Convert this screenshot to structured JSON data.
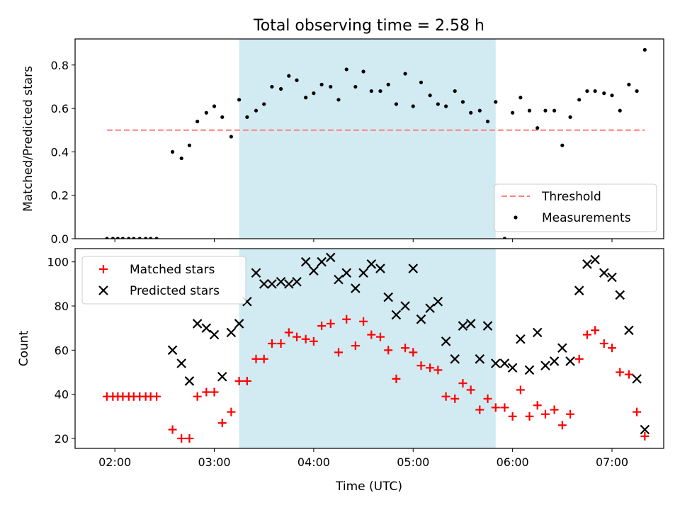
{
  "title": "Total observing time = 2.58 h",
  "x_tick_labels": [
    "02:00",
    "03:00",
    "04:00",
    "05:00",
    "06:00",
    "07:00"
  ],
  "x_ticks_hours": [
    2,
    3,
    4,
    5,
    6,
    7
  ],
  "xlabel": "Time (UTC)",
  "xlim_hours": [
    1.6,
    7.52
  ],
  "highlight_window_hours": [
    3.25,
    5.83
  ],
  "colors": {
    "highlight": "#add8e6",
    "threshold": "#ff7f7f",
    "measurements": "#000000",
    "matched": "#ff0000",
    "predicted": "#000000"
  },
  "chart_data": [
    {
      "type": "scatter",
      "ylabel": "Matched/Predicted stars",
      "ylim": [
        0,
        0.92
      ],
      "y_ticks": [
        0,
        0.2,
        0.4,
        0.6,
        0.8
      ],
      "y_tick_labels": [
        "0.0",
        "0.2",
        "0.4",
        "0.6",
        "0.8"
      ],
      "legend_position": "lower-right",
      "threshold": {
        "name": "Threshold",
        "value": 0.5,
        "x_range_hours": [
          1.92,
          7.33
        ]
      },
      "series": [
        {
          "name": "Measurements",
          "x_hours": [
            1.92,
            1.98,
            2.03,
            2.08,
            2.14,
            2.19,
            2.25,
            2.31,
            2.36,
            2.42,
            2.58,
            2.67,
            2.75,
            2.83,
            2.92,
            3.0,
            3.08,
            3.17,
            3.25,
            3.33,
            3.42,
            3.5,
            3.58,
            3.67,
            3.75,
            3.83,
            3.92,
            4.0,
            4.08,
            4.17,
            4.25,
            4.33,
            4.42,
            4.5,
            4.58,
            4.67,
            4.75,
            4.83,
            4.92,
            5.0,
            5.08,
            5.17,
            5.25,
            5.33,
            5.42,
            5.5,
            5.58,
            5.67,
            5.75,
            5.83,
            5.92,
            6.0,
            6.08,
            6.17,
            6.25,
            6.33,
            6.42,
            6.5,
            6.58,
            6.67,
            6.75,
            6.83,
            6.92,
            7.0,
            7.08,
            7.17,
            7.25,
            7.33
          ],
          "y": [
            0,
            0,
            0,
            0,
            0,
            0,
            0,
            0,
            0,
            0,
            0.4,
            0.37,
            0.43,
            0.54,
            0.58,
            0.61,
            0.56,
            0.47,
            0.64,
            0.56,
            0.59,
            0.62,
            0.7,
            0.69,
            0.75,
            0.73,
            0.65,
            0.67,
            0.71,
            0.7,
            0.64,
            0.78,
            0.7,
            0.77,
            0.68,
            0.68,
            0.71,
            0.62,
            0.76,
            0.61,
            0.72,
            0.66,
            0.62,
            0.61,
            0.68,
            0.63,
            0.58,
            0.59,
            0.54,
            0.63,
            0,
            0.58,
            0.65,
            0.59,
            0.51,
            0.59,
            0.59,
            0.43,
            0.56,
            0.64,
            0.68,
            0.68,
            0.67,
            0.66,
            0.59,
            0.71,
            0.68,
            0.87
          ]
        }
      ]
    },
    {
      "type": "scatter",
      "ylabel": "Count",
      "ylim": [
        15.5,
        106
      ],
      "y_ticks": [
        20,
        40,
        60,
        80,
        100
      ],
      "y_tick_labels": [
        "20",
        "40",
        "60",
        "80",
        "100"
      ],
      "legend_position": "upper-left",
      "series": [
        {
          "name": "Matched stars",
          "marker": "plus",
          "x_hours": [
            1.92,
            1.98,
            2.03,
            2.08,
            2.14,
            2.19,
            2.25,
            2.31,
            2.36,
            2.42,
            2.58,
            2.67,
            2.75,
            2.83,
            2.92,
            3.0,
            3.08,
            3.17,
            3.25,
            3.33,
            3.42,
            3.5,
            3.58,
            3.67,
            3.75,
            3.83,
            3.92,
            4.0,
            4.08,
            4.17,
            4.25,
            4.33,
            4.42,
            4.5,
            4.58,
            4.67,
            4.75,
            4.83,
            4.92,
            5.0,
            5.08,
            5.17,
            5.25,
            5.33,
            5.42,
            5.5,
            5.58,
            5.67,
            5.75,
            5.83,
            5.92,
            6.0,
            6.08,
            6.17,
            6.25,
            6.33,
            6.42,
            6.5,
            6.58,
            6.67,
            6.75,
            6.83,
            6.92,
            7.0,
            7.08,
            7.17,
            7.25,
            7.33
          ],
          "y": [
            39,
            39,
            39,
            39,
            39,
            39,
            39,
            39,
            39,
            39,
            24,
            20,
            20,
            39,
            41,
            41,
            27,
            32,
            46,
            46,
            56,
            56,
            63,
            63,
            68,
            66,
            65,
            64,
            71,
            72,
            59,
            74,
            62,
            73,
            67,
            66,
            60,
            47,
            61,
            59,
            53,
            52,
            51,
            39,
            38,
            45,
            42,
            33,
            38,
            34,
            34,
            30,
            42,
            30,
            35,
            31,
            33,
            26,
            31,
            56,
            67,
            69,
            63,
            61,
            50,
            49,
            32,
            21
          ]
        },
        {
          "name": "Predicted stars",
          "marker": "x",
          "x_hours": [
            2.58,
            2.67,
            2.75,
            2.83,
            2.92,
            3.0,
            3.08,
            3.17,
            3.25,
            3.33,
            3.42,
            3.5,
            3.58,
            3.67,
            3.75,
            3.83,
            3.92,
            4.0,
            4.08,
            4.17,
            4.25,
            4.33,
            4.42,
            4.5,
            4.58,
            4.67,
            4.75,
            4.83,
            4.92,
            5.0,
            5.08,
            5.17,
            5.25,
            5.33,
            5.42,
            5.5,
            5.58,
            5.67,
            5.75,
            5.83,
            5.92,
            6.0,
            6.08,
            6.17,
            6.25,
            6.33,
            6.42,
            6.5,
            6.58,
            6.67,
            6.75,
            6.83,
            6.92,
            7.0,
            7.08,
            7.17,
            7.25,
            7.33
          ],
          "y": [
            60,
            54,
            46,
            72,
            70,
            67,
            48,
            68,
            72,
            82,
            95,
            90,
            90,
            91,
            90,
            91,
            100,
            96,
            100,
            102,
            92,
            95,
            88,
            95,
            99,
            97,
            84,
            76,
            80,
            97,
            74,
            79,
            82,
            64,
            56,
            71,
            72,
            56,
            71,
            54,
            54,
            52,
            65,
            51,
            68,
            53,
            55,
            61,
            55,
            87,
            99,
            101,
            95,
            93,
            85,
            69,
            47,
            24
          ]
        }
      ]
    }
  ]
}
